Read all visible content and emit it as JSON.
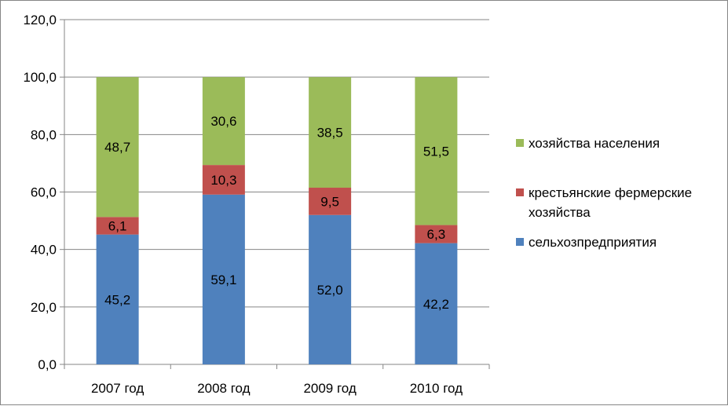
{
  "chart_data": {
    "type": "bar",
    "stacked": true,
    "title": "",
    "xlabel": "",
    "ylabel": "",
    "ylim": [
      0,
      120
    ],
    "y_ticks": [
      "0,0",
      "20,0",
      "40,0",
      "60,0",
      "80,0",
      "100,0",
      "120,0"
    ],
    "y_tick_values": [
      0,
      20,
      40,
      60,
      80,
      100,
      120
    ],
    "grid": true,
    "legend_position": "right",
    "categories": [
      "2007 год",
      "2008 год",
      "2009 год",
      "2010 год"
    ],
    "series": [
      {
        "name": "сельхозпредприятия",
        "color": "#4F81BD",
        "values": [
          45.2,
          59.1,
          52.0,
          42.2
        ],
        "labels": [
          "45,2",
          "59,1",
          "52,0",
          "42,2"
        ]
      },
      {
        "name": "крестьянские фермерские хозяйства",
        "name_lines": [
          "крестьянские фермерские",
          "хозяйства"
        ],
        "color": "#C0504D",
        "values": [
          6.1,
          10.3,
          9.5,
          6.3
        ],
        "labels": [
          "6,1",
          "10,3",
          "9,5",
          "6,3"
        ]
      },
      {
        "name": "хозяйства населения",
        "color": "#9BBB59",
        "values": [
          48.7,
          30.6,
          38.5,
          51.5
        ],
        "labels": [
          "48,7",
          "30,6",
          "38,5",
          "51,5"
        ]
      }
    ]
  }
}
